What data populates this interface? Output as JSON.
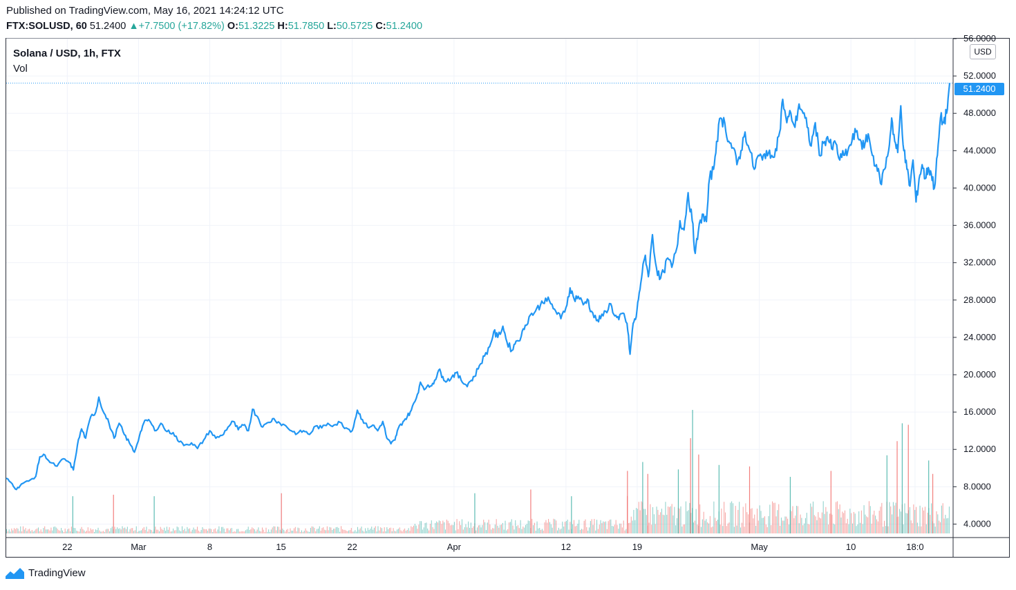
{
  "publish_line": "Published on TradingView.com, May 16, 2021 14:24:12 UTC",
  "quote": {
    "symbol": "FTX:SOLUSD, 60",
    "last": "51.2400",
    "change": "+7.7500 (+17.82%)",
    "open_label": "O:",
    "open": "51.3225",
    "high_label": "H:",
    "high": "51.7850",
    "low_label": "L:",
    "low": "50.5725",
    "close_label": "C:",
    "close": "51.2400"
  },
  "legend": {
    "title": "Solana / USD, 1h, FTX",
    "vol_label": "Vol"
  },
  "price_unit": "USD",
  "last_price_tag": "51.2400",
  "footer": {
    "brand": "TradingView"
  },
  "colors": {
    "line": "#2196f3",
    "up": "#26a69a",
    "down": "#ef5350",
    "grid": "#f0f3fa"
  },
  "chart_data": {
    "type": "line",
    "title": "Solana / USD, 1h, FTX",
    "ylabel": "USD",
    "ylim": [
      3.0,
      56.0
    ],
    "y_ticks": [
      "4.0000",
      "8.0000",
      "12.0000",
      "16.0000",
      "20.0000",
      "24.0000",
      "28.0000",
      "32.0000",
      "36.0000",
      "40.0000",
      "44.0000",
      "48.0000",
      "52.0000",
      "56.0000"
    ],
    "x_ticks": [
      {
        "label": "22",
        "day": 6
      },
      {
        "label": "Mar",
        "day": 13
      },
      {
        "label": "8",
        "day": 20
      },
      {
        "label": "15",
        "day": 27
      },
      {
        "label": "22",
        "day": 34
      },
      {
        "label": "Apr",
        "day": 44
      },
      {
        "label": "12",
        "day": 55
      },
      {
        "label": "19",
        "day": 62
      },
      {
        "label": "May",
        "day": 74
      },
      {
        "label": "10",
        "day": 83
      },
      {
        "label": "18:0",
        "day": 89.3
      }
    ],
    "x_range_days": [
      0,
      89.4
    ],
    "series": [
      {
        "name": "SOLUSD close",
        "points": [
          [
            0,
            8.9
          ],
          [
            0.6,
            8.3
          ],
          [
            1.0,
            7.7
          ],
          [
            1.5,
            8.3
          ],
          [
            2.2,
            8.6
          ],
          [
            2.9,
            9.1
          ],
          [
            3.3,
            11.2
          ],
          [
            3.8,
            11.4
          ],
          [
            4.3,
            10.6
          ],
          [
            5.0,
            10.2
          ],
          [
            5.6,
            11.0
          ],
          [
            6.2,
            10.6
          ],
          [
            6.6,
            9.8
          ],
          [
            7.0,
            12.5
          ],
          [
            7.4,
            14.2
          ],
          [
            7.8,
            13.2
          ],
          [
            8.3,
            15.5
          ],
          [
            8.8,
            16.0
          ],
          [
            9.1,
            17.6
          ],
          [
            9.6,
            15.9
          ],
          [
            10.1,
            14.8
          ],
          [
            10.6,
            13.2
          ],
          [
            11.1,
            14.8
          ],
          [
            11.6,
            13.6
          ],
          [
            12.1,
            12.7
          ],
          [
            12.6,
            11.7
          ],
          [
            13.1,
            13.5
          ],
          [
            13.5,
            14.8
          ],
          [
            14.0,
            15.2
          ],
          [
            14.6,
            14.0
          ],
          [
            15.2,
            14.8
          ],
          [
            15.8,
            13.9
          ],
          [
            16.4,
            13.8
          ],
          [
            17.0,
            12.8
          ],
          [
            17.6,
            12.5
          ],
          [
            18.2,
            12.7
          ],
          [
            18.8,
            12.1
          ],
          [
            19.4,
            13.0
          ],
          [
            20.0,
            14.0
          ],
          [
            20.6,
            13.2
          ],
          [
            21.2,
            13.5
          ],
          [
            21.8,
            14.4
          ],
          [
            22.3,
            15.0
          ],
          [
            22.8,
            14.1
          ],
          [
            23.3,
            14.6
          ],
          [
            23.8,
            14.0
          ],
          [
            24.2,
            16.3
          ],
          [
            24.7,
            15.5
          ],
          [
            25.2,
            14.4
          ],
          [
            25.8,
            14.9
          ],
          [
            26.3,
            15.3
          ],
          [
            26.9,
            14.8
          ],
          [
            27.5,
            14.5
          ],
          [
            28.0,
            14.0
          ],
          [
            28.6,
            13.7
          ],
          [
            29.2,
            14.0
          ],
          [
            29.8,
            13.6
          ],
          [
            30.4,
            14.5
          ],
          [
            31.0,
            14.3
          ],
          [
            31.6,
            14.8
          ],
          [
            32.2,
            14.6
          ],
          [
            32.8,
            14.9
          ],
          [
            33.4,
            14.3
          ],
          [
            34.0,
            14.0
          ],
          [
            34.5,
            16.2
          ],
          [
            35.0,
            15.2
          ],
          [
            35.5,
            14.4
          ],
          [
            36.0,
            14.6
          ],
          [
            36.5,
            14.0
          ],
          [
            37.0,
            15.0
          ],
          [
            37.4,
            13.2
          ],
          [
            37.8,
            12.6
          ],
          [
            38.2,
            13.0
          ],
          [
            38.5,
            14.2
          ],
          [
            39.0,
            15.0
          ],
          [
            39.4,
            15.5
          ],
          [
            39.8,
            16.2
          ],
          [
            40.3,
            17.5
          ],
          [
            40.7,
            19.2
          ],
          [
            41.2,
            18.5
          ],
          [
            41.7,
            18.8
          ],
          [
            42.1,
            19.4
          ],
          [
            42.5,
            20.5
          ],
          [
            42.9,
            19.8
          ],
          [
            43.3,
            19.3
          ],
          [
            43.8,
            19.8
          ],
          [
            44.2,
            20.2
          ],
          [
            44.7,
            19.4
          ],
          [
            45.2,
            18.9
          ],
          [
            45.6,
            19.3
          ],
          [
            46.0,
            19.8
          ],
          [
            46.5,
            21.0
          ],
          [
            47.0,
            22.0
          ],
          [
            47.5,
            23.0
          ],
          [
            47.9,
            24.6
          ],
          [
            48.3,
            24.0
          ],
          [
            48.8,
            25.2
          ],
          [
            49.2,
            23.5
          ],
          [
            49.7,
            22.6
          ],
          [
            50.1,
            23.6
          ],
          [
            50.6,
            24.1
          ],
          [
            51.0,
            25.3
          ],
          [
            51.5,
            26.4
          ],
          [
            52.0,
            26.8
          ],
          [
            52.5,
            27.5
          ],
          [
            53.0,
            28.2
          ],
          [
            53.5,
            27.6
          ],
          [
            54.0,
            26.8
          ],
          [
            54.5,
            26.0
          ],
          [
            55.0,
            27.2
          ],
          [
            55.4,
            29.3
          ],
          [
            55.8,
            28.1
          ],
          [
            56.2,
            28.4
          ],
          [
            56.7,
            27.5
          ],
          [
            57.1,
            28.1
          ],
          [
            57.5,
            26.8
          ],
          [
            58.0,
            25.8
          ],
          [
            58.4,
            26.0
          ],
          [
            58.9,
            26.8
          ],
          [
            59.4,
            27.6
          ],
          [
            59.8,
            26.3
          ],
          [
            60.2,
            25.9
          ],
          [
            60.6,
            26.6
          ],
          [
            61.0,
            25.5
          ],
          [
            61.3,
            22.2
          ],
          [
            61.6,
            25.5
          ],
          [
            61.9,
            26.2
          ],
          [
            62.2,
            28.8
          ],
          [
            62.5,
            31.0
          ],
          [
            62.8,
            32.8
          ],
          [
            63.1,
            30.5
          ],
          [
            63.5,
            35.0
          ],
          [
            63.8,
            32.0
          ],
          [
            64.2,
            30.2
          ],
          [
            64.6,
            31.0
          ],
          [
            65.0,
            32.5
          ],
          [
            65.4,
            31.5
          ],
          [
            65.9,
            33.6
          ],
          [
            66.2,
            36.5
          ],
          [
            66.6,
            35.5
          ],
          [
            67.0,
            39.5
          ],
          [
            67.4,
            36.5
          ],
          [
            67.7,
            33.0
          ],
          [
            68.0,
            35.3
          ],
          [
            68.4,
            37.2
          ],
          [
            68.8,
            36.4
          ],
          [
            69.1,
            41.0
          ],
          [
            69.5,
            42.0
          ],
          [
            69.8,
            45.0
          ],
          [
            70.2,
            47.5
          ],
          [
            70.6,
            47.0
          ],
          [
            71.0,
            45.0
          ],
          [
            71.4,
            44.3
          ],
          [
            71.8,
            42.5
          ],
          [
            72.2,
            44.0
          ],
          [
            72.6,
            46.0
          ],
          [
            73.0,
            44.2
          ],
          [
            73.5,
            42.0
          ],
          [
            73.9,
            43.5
          ],
          [
            74.3,
            43.0
          ],
          [
            74.7,
            44.0
          ],
          [
            75.1,
            43.2
          ],
          [
            75.6,
            44.2
          ],
          [
            76.0,
            46.0
          ],
          [
            76.3,
            49.5
          ],
          [
            76.7,
            47.0
          ],
          [
            77.1,
            48.0
          ],
          [
            77.5,
            46.5
          ],
          [
            77.9,
            49.0
          ],
          [
            78.3,
            48.0
          ],
          [
            78.7,
            46.5
          ],
          [
            79.1,
            44.5
          ],
          [
            79.5,
            47.0
          ],
          [
            79.9,
            43.5
          ],
          [
            80.3,
            44.8
          ],
          [
            80.7,
            45.5
          ],
          [
            81.1,
            44.2
          ],
          [
            81.5,
            44.8
          ],
          [
            81.9,
            43.0
          ],
          [
            82.3,
            43.5
          ],
          [
            82.7,
            44.0
          ],
          [
            83.1,
            45.0
          ],
          [
            83.5,
            46.0
          ],
          [
            83.9,
            45.2
          ],
          [
            84.3,
            44.3
          ],
          [
            84.7,
            45.8
          ],
          [
            85.1,
            43.5
          ],
          [
            85.5,
            42.5
          ],
          [
            85.9,
            40.5
          ],
          [
            86.3,
            42.0
          ],
          [
            86.7,
            44.0
          ],
          [
            87.0,
            47.5
          ],
          [
            87.3,
            45.0
          ],
          [
            87.6,
            43.8
          ],
          [
            87.9,
            48.8
          ],
          [
            88.2,
            44.0
          ],
          [
            88.5,
            42.0
          ],
          [
            88.8,
            40.2
          ],
          [
            89.1,
            43.0
          ],
          [
            89.4,
            38.5
          ],
          [
            89.7,
            41.0
          ],
          [
            90.0,
            42.5
          ],
          [
            90.3,
            41.0
          ],
          [
            90.6,
            42.2
          ],
          [
            90.9,
            41.5
          ],
          [
            91.2,
            40.0
          ],
          [
            91.5,
            43.5
          ],
          [
            91.8,
            47.5
          ],
          [
            92.1,
            47.0
          ],
          [
            92.4,
            48.0
          ],
          [
            92.7,
            51.24
          ]
        ]
      }
    ],
    "volume_bars_max": 16.6,
    "volume_spikes": [
      {
        "day": 6.5,
        "value": 5.0
      },
      {
        "day": 10.5,
        "value": 5.2
      },
      {
        "day": 14.5,
        "value": 5.0
      },
      {
        "day": 27.0,
        "value": 5.4
      },
      {
        "day": 46.0,
        "value": 5.4
      },
      {
        "day": 51.5,
        "value": 5.9
      },
      {
        "day": 55.5,
        "value": 5.0
      },
      {
        "day": 61.0,
        "value": 8.4
      },
      {
        "day": 62.5,
        "value": 9.6
      },
      {
        "day": 63.0,
        "value": 8.0
      },
      {
        "day": 66.0,
        "value": 8.6
      },
      {
        "day": 67.2,
        "value": 12.8
      },
      {
        "day": 67.4,
        "value": 16.6
      },
      {
        "day": 68.0,
        "value": 10.6
      },
      {
        "day": 70.0,
        "value": 9.2
      },
      {
        "day": 73.0,
        "value": 9.0
      },
      {
        "day": 77.0,
        "value": 7.6
      },
      {
        "day": 81.0,
        "value": 8.4
      },
      {
        "day": 86.5,
        "value": 10.5
      },
      {
        "day": 87.5,
        "value": 12.4
      },
      {
        "day": 88.0,
        "value": 14.8
      },
      {
        "day": 88.6,
        "value": 14.6
      },
      {
        "day": 90.6,
        "value": 9.8
      },
      {
        "day": 91.0,
        "value": 8.0
      }
    ],
    "last_value": 51.24
  }
}
